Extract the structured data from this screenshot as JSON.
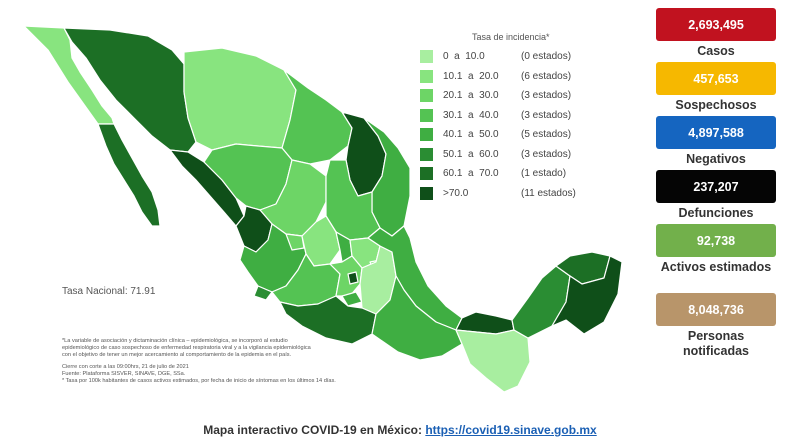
{
  "legend": {
    "title": "Tasa de incidencia*",
    "items": [
      {
        "range": "0  a  10.0",
        "count": "(0 estados)",
        "color": "#a8eea0"
      },
      {
        "range": "10.1  a  20.0",
        "count": "(6 estados)",
        "color": "#88e47f"
      },
      {
        "range": "20.1  a  30.0",
        "count": "(3 estados)",
        "color": "#6dd566"
      },
      {
        "range": "30.1  a  40.0",
        "count": "(3 estados)",
        "color": "#54c353"
      },
      {
        "range": "40.1  a  50.0",
        "count": "(5 estados)",
        "color": "#3fae42"
      },
      {
        "range": "50.1  a  60.0",
        "count": "(3 estados)",
        "color": "#2a8d33"
      },
      {
        "range": "60.1  a  70.0",
        "count": "(1 estado)",
        "color": "#1c6f25"
      },
      {
        "range": ">70.0",
        "count": "(11 estados)",
        "color": "#0f4f19"
      }
    ]
  },
  "tasa_nacional": "Tasa Nacional: 71.91",
  "notes": {
    "line1": "*La variable de asociación y dictaminación clínica – epidemiológica, se incorporó al estudio",
    "line2": "epidemiológico de caso sospechoso de enfermedad respiratoria viral y a la vigilancia epidemiológica",
    "line3": "con el objetivo de tener un mejor acercamiento al comportamiento de la epidemia en el país.",
    "line4": "Cierre con corte a las 09:00hrs, 21 de julio de 2021",
    "line5": "Fuente: Plataforma SISVER, SINAVE, DGE, SSa.",
    "line6": "* Tasa por 100k habitantes de casos activos estimados, por fecha de inicio de síntomas en los últimos 14 días."
  },
  "stats": [
    {
      "value": "2,693,495",
      "label": "Casos",
      "color": "#c1121f"
    },
    {
      "value": "457,653",
      "label": "Sospechosos",
      "color": "#f6b800"
    },
    {
      "value": "4,897,588",
      "label": "Negativos",
      "color": "#1565c0"
    },
    {
      "value": "237,207",
      "label": "Defunciones",
      "color": "#050505"
    },
    {
      "value": "92,738",
      "label": "Activos estimados",
      "color": "#72b04b"
    },
    {
      "value": "8,048,736",
      "label": "Personas notificadas",
      "color": "#b8956a"
    }
  ],
  "footer": {
    "text": "Mapa interactivo COVID-19 en México:",
    "link": "https://covid19.sinave.gob.mx"
  },
  "colors": {
    "border": "#ffffff",
    "lake": "#ffffff"
  }
}
